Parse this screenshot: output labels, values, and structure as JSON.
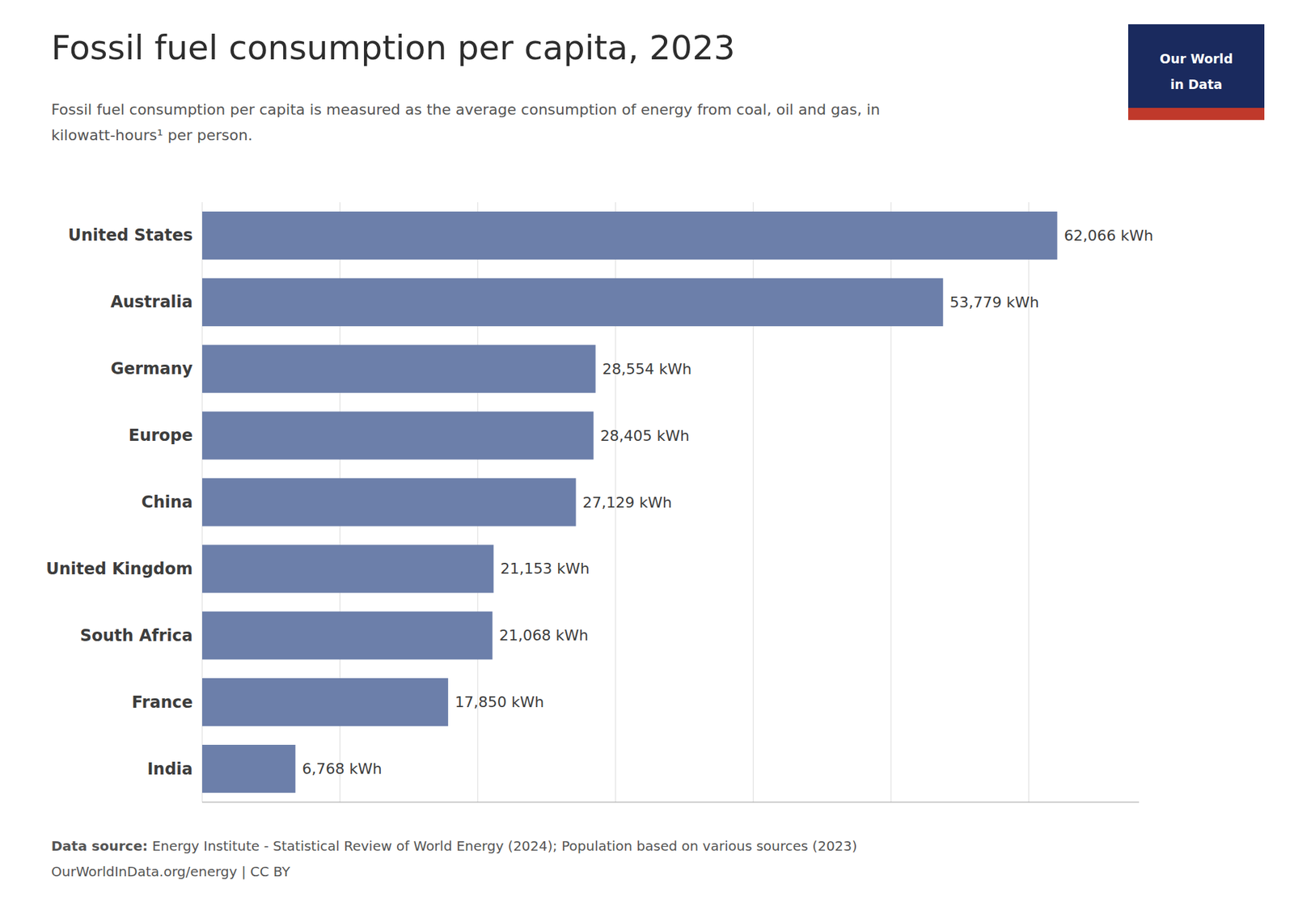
{
  "chart_data": {
    "type": "bar",
    "orientation": "horizontal",
    "title": "Fossil fuel consumption per capita, 2023",
    "subtitle": [
      "Fossil fuel consumption per capita is measured as the average consumption of energy from coal, oil and gas, in",
      "kilowatt-hours¹ per person."
    ],
    "annotations": [
      "Data source:",
      " Energy Institute - Statistical Review of World Energy (2024); Population based on various sources (2023)",
      "OurWorldInData.org/energy | CC BY",
      "Our World",
      "in Data"
    ],
    "categories": [
      "United States",
      "Australia",
      "Germany",
      "Europe",
      "China",
      "United Kingdom",
      "South Africa",
      "France",
      "India"
    ],
    "values": [
      62066,
      53779,
      28554,
      28405,
      27129,
      21153,
      21068,
      17850,
      6768
    ],
    "value_labels": [
      "62,066 kWh",
      "53,779 kWh",
      "28,554 kWh",
      "28,405 kWh",
      "27,129 kWh",
      "21,153 kWh",
      "21,068 kWh",
      "17,850 kWh",
      "6,768 kWh"
    ],
    "data_labels": true,
    "color": "#6c7faa",
    "xlim": [
      0,
      68000
    ],
    "xticks": [
      0,
      10000,
      20000,
      30000,
      40000,
      50000,
      60000
    ],
    "grid": true,
    "tick_labels": "y"
  }
}
